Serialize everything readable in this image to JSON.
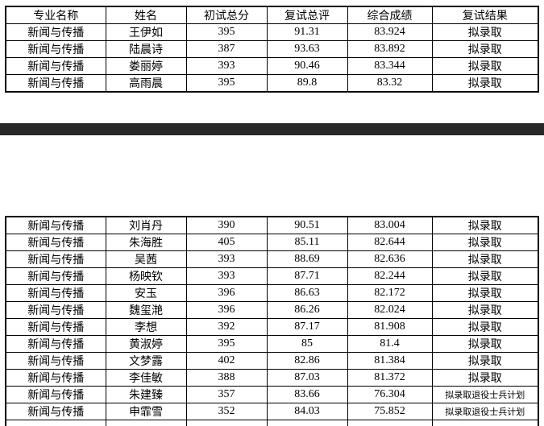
{
  "columns": [
    "major",
    "name",
    "initial_total",
    "retest_overall",
    "composite_score",
    "retest_result"
  ],
  "header_labels": [
    "专业名称",
    "姓名",
    "初试总分",
    "复试总评",
    "综合成绩",
    "复试结果"
  ],
  "colors": {
    "background": "#ffffff",
    "border": "#000000",
    "text": "#000000",
    "divider_bar": "#282828"
  },
  "table1": {
    "rows": [
      {
        "major": "新闻与传播",
        "name": "王伊如",
        "initial_total": "395",
        "retest_overall": "91.31",
        "composite_score": "83.924",
        "retest_result": "拟录取"
      },
      {
        "major": "新闻与传播",
        "name": "陆晨诗",
        "initial_total": "387",
        "retest_overall": "93.63",
        "composite_score": "83.892",
        "retest_result": "拟录取"
      },
      {
        "major": "新闻与传播",
        "name": "娄丽婷",
        "initial_total": "393",
        "retest_overall": "90.46",
        "composite_score": "83.344",
        "retest_result": "拟录取"
      },
      {
        "major": "新闻与传播",
        "name": "高雨晨",
        "initial_total": "395",
        "retest_overall": "89.8",
        "composite_score": "83.32",
        "retest_result": "拟录取"
      }
    ]
  },
  "table2": {
    "rows": [
      {
        "major": "新闻与传播",
        "name": "刘肖丹",
        "initial_total": "390",
        "retest_overall": "90.51",
        "composite_score": "83.004",
        "retest_result": "拟录取"
      },
      {
        "major": "新闻与传播",
        "name": "朱海胜",
        "initial_total": "405",
        "retest_overall": "85.11",
        "composite_score": "82.644",
        "retest_result": "拟录取"
      },
      {
        "major": "新闻与传播",
        "name": "吴茜",
        "initial_total": "393",
        "retest_overall": "88.69",
        "composite_score": "82.636",
        "retest_result": "拟录取"
      },
      {
        "major": "新闻与传播",
        "name": "杨映钦",
        "initial_total": "393",
        "retest_overall": "87.71",
        "composite_score": "82.244",
        "retest_result": "拟录取"
      },
      {
        "major": "新闻与传播",
        "name": "安玉",
        "initial_total": "396",
        "retest_overall": "86.63",
        "composite_score": "82.172",
        "retest_result": "拟录取"
      },
      {
        "major": "新闻与传播",
        "name": "魏玺滟",
        "initial_total": "396",
        "retest_overall": "86.26",
        "composite_score": "82.024",
        "retest_result": "拟录取"
      },
      {
        "major": "新闻与传播",
        "name": "李想",
        "initial_total": "392",
        "retest_overall": "87.17",
        "composite_score": "81.908",
        "retest_result": "拟录取"
      },
      {
        "major": "新闻与传播",
        "name": "黄淑婷",
        "initial_total": "395",
        "retest_overall": "85",
        "composite_score": "81.4",
        "retest_result": "拟录取"
      },
      {
        "major": "新闻与传播",
        "name": "文梦露",
        "initial_total": "402",
        "retest_overall": "82.86",
        "composite_score": "81.384",
        "retest_result": "拟录取"
      },
      {
        "major": "新闻与传播",
        "name": "李佳敏",
        "initial_total": "388",
        "retest_overall": "87.03",
        "composite_score": "81.372",
        "retest_result": "拟录取"
      },
      {
        "major": "新闻与传播",
        "name": "朱建臻",
        "initial_total": "357",
        "retest_overall": "83.66",
        "composite_score": "76.304",
        "retest_result": "拟录取退役士兵计划"
      },
      {
        "major": "新闻与传播",
        "name": "申霏雪",
        "initial_total": "352",
        "retest_overall": "84.03",
        "composite_score": "75.852",
        "retest_result": "拟录取退役士兵计划"
      }
    ]
  }
}
